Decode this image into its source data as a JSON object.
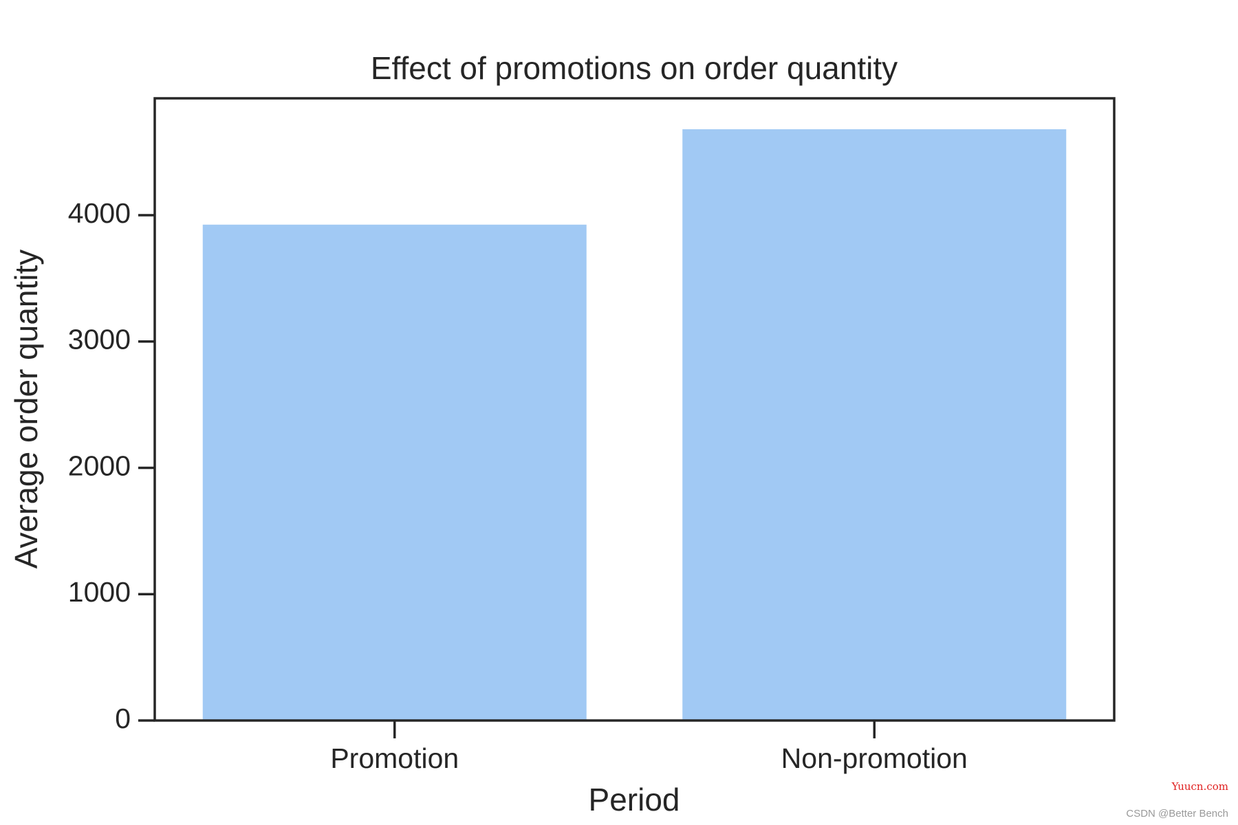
{
  "chart_data": {
    "type": "bar",
    "title": "Effect of promotions on order quantity",
    "x_label": "Period",
    "y_label": "Average order quantity",
    "categories": [
      "Promotion",
      "Non-promotion"
    ],
    "values": [
      3925,
      4680
    ],
    "color": "#a1c9f4",
    "ylim": [
      0,
      4925
    ],
    "yticks": [
      0,
      1000,
      2000,
      3000,
      4000
    ],
    "grid": false
  },
  "watermarks": [
    "Yuucn.com",
    "CSDN @Better Bench"
  ]
}
